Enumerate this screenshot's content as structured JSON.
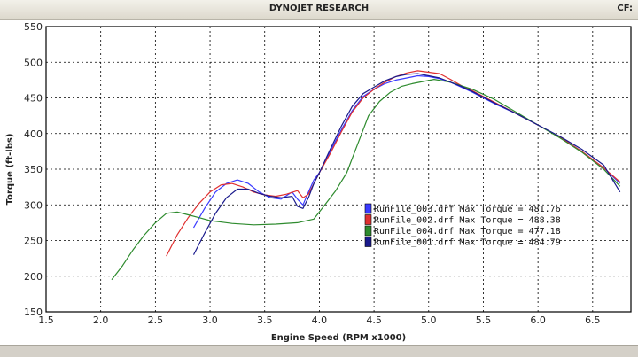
{
  "window": {
    "title": "DYNOJET RESEARCH",
    "cf_label": "CF:"
  },
  "chart_data": {
    "type": "line",
    "title": "DYNOJET RESEARCH",
    "xlabel": "Engine Speed (RPM x1000)",
    "ylabel": "Torque (ft-lbs)",
    "xlim": [
      1.5,
      6.85
    ],
    "ylim": [
      150,
      550
    ],
    "xticks": [
      "1.5",
      "2.0",
      "2.5",
      "3.0",
      "3.5",
      "4.0",
      "4.5",
      "5.0",
      "5.5",
      "6.0",
      "6.5"
    ],
    "yticks": [
      "150",
      "200",
      "250",
      "300",
      "350",
      "400",
      "450",
      "500",
      "550"
    ],
    "grid": true,
    "legend_position": "center-right",
    "series": [
      {
        "name": "RunFile_003.drf Max Torque = 481.76",
        "color": "#3a3aff",
        "x": [
          2.85,
          2.95,
          3.05,
          3.15,
          3.25,
          3.35,
          3.45,
          3.55,
          3.65,
          3.75,
          3.8,
          3.85,
          3.9,
          3.95,
          4.0,
          4.1,
          4.2,
          4.3,
          4.4,
          4.5,
          4.6,
          4.7,
          4.8,
          4.9,
          5.0,
          5.1,
          5.2,
          5.3,
          5.4,
          5.5,
          5.6,
          5.8,
          6.0,
          6.2,
          6.4,
          6.6,
          6.75
        ],
        "y": [
          268,
          295,
          318,
          330,
          335,
          330,
          318,
          310,
          308,
          318,
          308,
          300,
          318,
          335,
          345,
          375,
          405,
          432,
          452,
          462,
          470,
          475,
          478,
          481,
          480,
          477,
          472,
          465,
          458,
          450,
          442,
          428,
          412,
          395,
          375,
          352,
          330
        ]
      },
      {
        "name": "RunFile_002.drf Max Torque = 488.38",
        "color": "#e03030",
        "x": [
          2.6,
          2.7,
          2.8,
          2.9,
          3.0,
          3.1,
          3.2,
          3.3,
          3.4,
          3.5,
          3.6,
          3.7,
          3.8,
          3.85,
          3.9,
          3.95,
          4.0,
          4.1,
          4.2,
          4.3,
          4.4,
          4.5,
          4.6,
          4.7,
          4.8,
          4.9,
          5.0,
          5.1,
          5.2,
          5.3,
          5.4,
          5.5,
          5.6,
          5.8,
          6.0,
          6.2,
          6.4,
          6.6,
          6.75
        ],
        "y": [
          228,
          258,
          282,
          302,
          318,
          328,
          330,
          325,
          318,
          314,
          312,
          315,
          320,
          310,
          315,
          330,
          345,
          372,
          402,
          430,
          450,
          462,
          472,
          480,
          485,
          488,
          486,
          484,
          476,
          467,
          460,
          452,
          444,
          428,
          412,
          395,
          375,
          352,
          332
        ]
      },
      {
        "name": "RunFile_004.drf Max Torque = 477.18",
        "color": "#2e8b2e",
        "x": [
          2.1,
          2.2,
          2.3,
          2.4,
          2.5,
          2.6,
          2.7,
          2.8,
          2.9,
          3.0,
          3.2,
          3.4,
          3.6,
          3.8,
          3.95,
          4.05,
          4.15,
          4.25,
          4.35,
          4.45,
          4.55,
          4.65,
          4.75,
          4.85,
          4.95,
          5.05,
          5.2,
          5.4,
          5.6,
          5.8,
          6.0,
          6.2,
          6.4,
          6.6,
          6.75
        ],
        "y": [
          195,
          215,
          238,
          258,
          275,
          288,
          290,
          286,
          282,
          278,
          274,
          272,
          273,
          275,
          280,
          300,
          320,
          345,
          385,
          425,
          445,
          458,
          466,
          470,
          473,
          476,
          472,
          462,
          448,
          430,
          412,
          394,
          374,
          350,
          326
        ]
      },
      {
        "name": "RunFile_001.drf Max Torque = 484.79",
        "color": "#1a1a8c",
        "x": [
          2.85,
          2.95,
          3.05,
          3.15,
          3.25,
          3.35,
          3.45,
          3.55,
          3.65,
          3.75,
          3.8,
          3.85,
          3.9,
          3.95,
          4.0,
          4.1,
          4.2,
          4.3,
          4.4,
          4.5,
          4.6,
          4.7,
          4.8,
          4.9,
          5.0,
          5.1,
          5.2,
          5.3,
          5.4,
          5.5,
          5.6,
          5.8,
          6.0,
          6.2,
          6.4,
          6.6,
          6.75
        ],
        "y": [
          230,
          260,
          288,
          310,
          322,
          322,
          316,
          312,
          310,
          312,
          298,
          295,
          310,
          330,
          345,
          378,
          410,
          438,
          456,
          465,
          474,
          480,
          483,
          484,
          481,
          478,
          472,
          466,
          459,
          451,
          443,
          428,
          412,
          396,
          378,
          356,
          318
        ]
      }
    ]
  }
}
